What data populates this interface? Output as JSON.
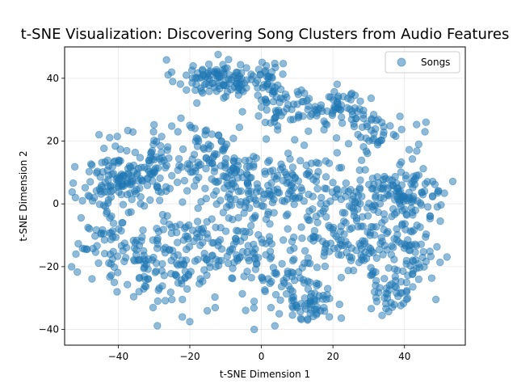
{
  "chart_data": {
    "type": "scatter",
    "title": "t-SNE Visualization: Discovering Song Clusters from Audio Features",
    "xlabel": "t-SNE Dimension 1",
    "ylabel": "t-SNE Dimension 2",
    "xlim": [
      -55,
      57
    ],
    "ylim": [
      -45,
      50
    ],
    "x_ticks": [
      -40,
      -20,
      0,
      20,
      40
    ],
    "y_ticks": [
      -40,
      -20,
      0,
      20,
      40
    ],
    "grid": true,
    "legend": {
      "position": "top-right",
      "entries": [
        "Songs"
      ]
    },
    "marker_color": "#1f77b4",
    "marker_alpha": 0.5,
    "series": [
      {
        "name": "Songs",
        "clusters": [
          {
            "center": [
              -12,
              40
            ],
            "spread": [
              6,
              3
            ],
            "count": 110
          },
          {
            "center": [
              2,
              40
            ],
            "spread": [
              2,
              3
            ],
            "count": 28
          },
          {
            "center": [
              6,
              31
            ],
            "spread": [
              4,
              4
            ],
            "count": 50
          },
          {
            "center": [
              22,
              30
            ],
            "spread": [
              6,
              3
            ],
            "count": 70
          },
          {
            "center": [
              33,
              22
            ],
            "spread": [
              5,
              3
            ],
            "count": 40
          },
          {
            "center": [
              -40,
              8
            ],
            "spread": [
              5,
              5
            ],
            "count": 110
          },
          {
            "center": [
              -30,
              12
            ],
            "spread": [
              4,
              6
            ],
            "count": 60
          },
          {
            "center": [
              -14,
              14
            ],
            "spread": [
              6,
              6
            ],
            "count": 100
          },
          {
            "center": [
              -5,
              5
            ],
            "spread": [
              4,
              5
            ],
            "count": 60
          },
          {
            "center": [
              5,
              6
            ],
            "spread": [
              5,
              5
            ],
            "count": 60
          },
          {
            "center": [
              22,
              5
            ],
            "spread": [
              7,
              5
            ],
            "count": 80
          },
          {
            "center": [
              40,
              3
            ],
            "spread": [
              6,
              4
            ],
            "count": 110
          },
          {
            "center": [
              -42,
              -12
            ],
            "spread": [
              5,
              6
            ],
            "count": 60
          },
          {
            "center": [
              -31,
              -20
            ],
            "spread": [
              5,
              7
            ],
            "count": 80
          },
          {
            "center": [
              -18,
              -15
            ],
            "spread": [
              5,
              7
            ],
            "count": 80
          },
          {
            "center": [
              -5,
              -15
            ],
            "spread": [
              4,
              6
            ],
            "count": 60
          },
          {
            "center": [
              8,
              -22
            ],
            "spread": [
              5,
              7
            ],
            "count": 70
          },
          {
            "center": [
              14,
              -32
            ],
            "spread": [
              3,
              3
            ],
            "count": 40
          },
          {
            "center": [
              22,
              -12
            ],
            "spread": [
              6,
              6
            ],
            "count": 70
          },
          {
            "center": [
              32,
              -15
            ],
            "spread": [
              5,
              6
            ],
            "count": 60
          },
          {
            "center": [
              42,
              -15
            ],
            "spread": [
              4,
              5
            ],
            "count": 50
          },
          {
            "center": [
              38,
              -28
            ],
            "spread": [
              4,
              3
            ],
            "count": 40
          }
        ],
        "outliers": [
          [
            -52,
            2
          ],
          [
            -50,
            1
          ],
          [
            -20,
            -37.5
          ],
          [
            -2,
            -40
          ],
          [
            -21,
            41
          ],
          [
            -20,
            25
          ],
          [
            50,
            -5.5
          ],
          [
            46,
            26
          ],
          [
            5,
            -35
          ],
          [
            19,
            -36
          ]
        ]
      }
    ]
  }
}
